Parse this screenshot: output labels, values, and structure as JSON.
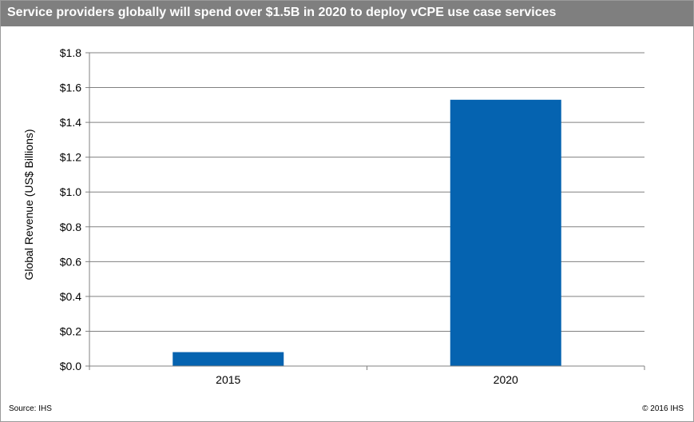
{
  "title": "Service providers globally will spend over $1.5B in 2020 to deploy vCPE use case services",
  "colors": {
    "title_bar": "#7f7f7f",
    "bar": "#0563b0",
    "gridline": "#808080"
  },
  "chart_data": {
    "type": "bar",
    "title": "Service providers globally will spend over $1.5B in 2020 to deploy vCPE use case services",
    "xlabel": "",
    "ylabel": "Global Revenue (US$ Billions)",
    "categories": [
      "2015",
      "2020"
    ],
    "values": [
      0.08,
      1.53
    ],
    "ylim": [
      0,
      1.8
    ],
    "yticks": [
      "$0.0",
      "$0.2",
      "$0.4",
      "$0.6",
      "$0.8",
      "$1.0",
      "$1.2",
      "$1.4",
      "$1.6",
      "$1.8"
    ],
    "grid": true,
    "legend": "none"
  },
  "footer": {
    "source": "Source: IHS",
    "copyright": "© 2016 IHS"
  }
}
